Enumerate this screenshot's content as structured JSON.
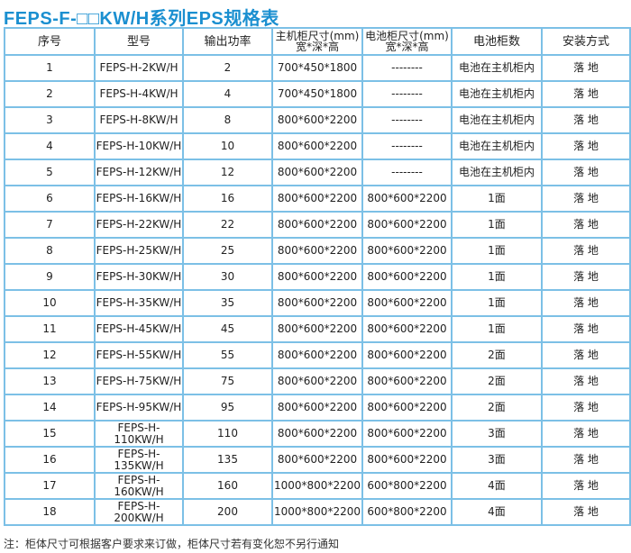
{
  "title": "FEPS-F-□□KW/H系列EPS规格表",
  "headers": [
    "序号",
    "型号",
    "输出功率",
    "主机柜尺寸(mm)",
    "宽*深*高",
    "电池柜尺寸(mm)",
    "宽*深*高",
    "电池柜数",
    "安装方式"
  ],
  "rows": [
    [
      "1",
      "FEPS-H-2KW/H",
      "2",
      "700*450*1800",
      "--------",
      "电池在主机柜内",
      "落 地"
    ],
    [
      "2",
      "FEPS-H-4KW/H",
      "4",
      "700*450*1800",
      "--------",
      "电池在主机柜内",
      "落 地"
    ],
    [
      "3",
      "FEPS-H-8KW/H",
      "8",
      "800*600*2200",
      "--------",
      "电池在主机柜内",
      "落 地"
    ],
    [
      "4",
      "FEPS-H-10KW/H",
      "10",
      "800*600*2200",
      "--------",
      "电池在主机柜内",
      "落 地"
    ],
    [
      "5",
      "FEPS-H-12KW/H",
      "12",
      "800*600*2200",
      "--------",
      "电池在主机柜内",
      "落 地"
    ],
    [
      "6",
      "FEPS-H-16KW/H",
      "16",
      "800*600*2200",
      "800*600*2200",
      "1面",
      "落 地"
    ],
    [
      "7",
      "FEPS-H-22KW/H",
      "22",
      "800*600*2200",
      "800*600*2200",
      "1面",
      "落 地"
    ],
    [
      "8",
      "FEPS-H-25KW/H",
      "25",
      "800*600*2200",
      "800*600*2200",
      "1面",
      "落 地"
    ],
    [
      "9",
      "FEPS-H-30KW/H",
      "30",
      "800*600*2200",
      "800*600*2200",
      "1面",
      "落 地"
    ],
    [
      "10",
      "FEPS-H-35KW/H",
      "35",
      "800*600*2200",
      "800*600*2200",
      "1面",
      "落 地"
    ],
    [
      "11",
      "FEPS-H-45KW/H",
      "45",
      "800*600*2200",
      "800*600*2200",
      "1面",
      "落 地"
    ],
    [
      "12",
      "FEPS-H-55KW/H",
      "55",
      "800*600*2200",
      "800*600*2200",
      "2面",
      "落 地"
    ],
    [
      "13",
      "FEPS-H-75KW/H",
      "75",
      "800*600*2200",
      "800*600*2200",
      "2面",
      "落 地"
    ],
    [
      "14",
      "FEPS-H-95KW/H",
      "95",
      "800*600*2200",
      "800*600*2200",
      "2面",
      "落 地"
    ],
    [
      "15",
      "FEPS-H-110KW/H",
      "110",
      "800*600*2200",
      "800*600*2200",
      "3面",
      "落 地"
    ],
    [
      "16",
      "FEPS-H-135KW/H",
      "135",
      "800*600*2200",
      "800*600*2200",
      "3面",
      "落 地"
    ],
    [
      "17",
      "FEPS-H-160KW/H",
      "160",
      "1000*800*2200",
      "600*800*2200",
      "4面",
      "落 地"
    ],
    [
      "18",
      "FEPS-H-200KW/H",
      "200",
      "1000*800*2200",
      "600*800*2200",
      "4面",
      "落 地"
    ]
  ],
  "note": "注：柜体尺寸可根据客户要求来订做，柜体尺寸若有变化恕不另行通知",
  "colors": {
    "title": "#1a8fd0",
    "border": "#7cc0e6"
  }
}
